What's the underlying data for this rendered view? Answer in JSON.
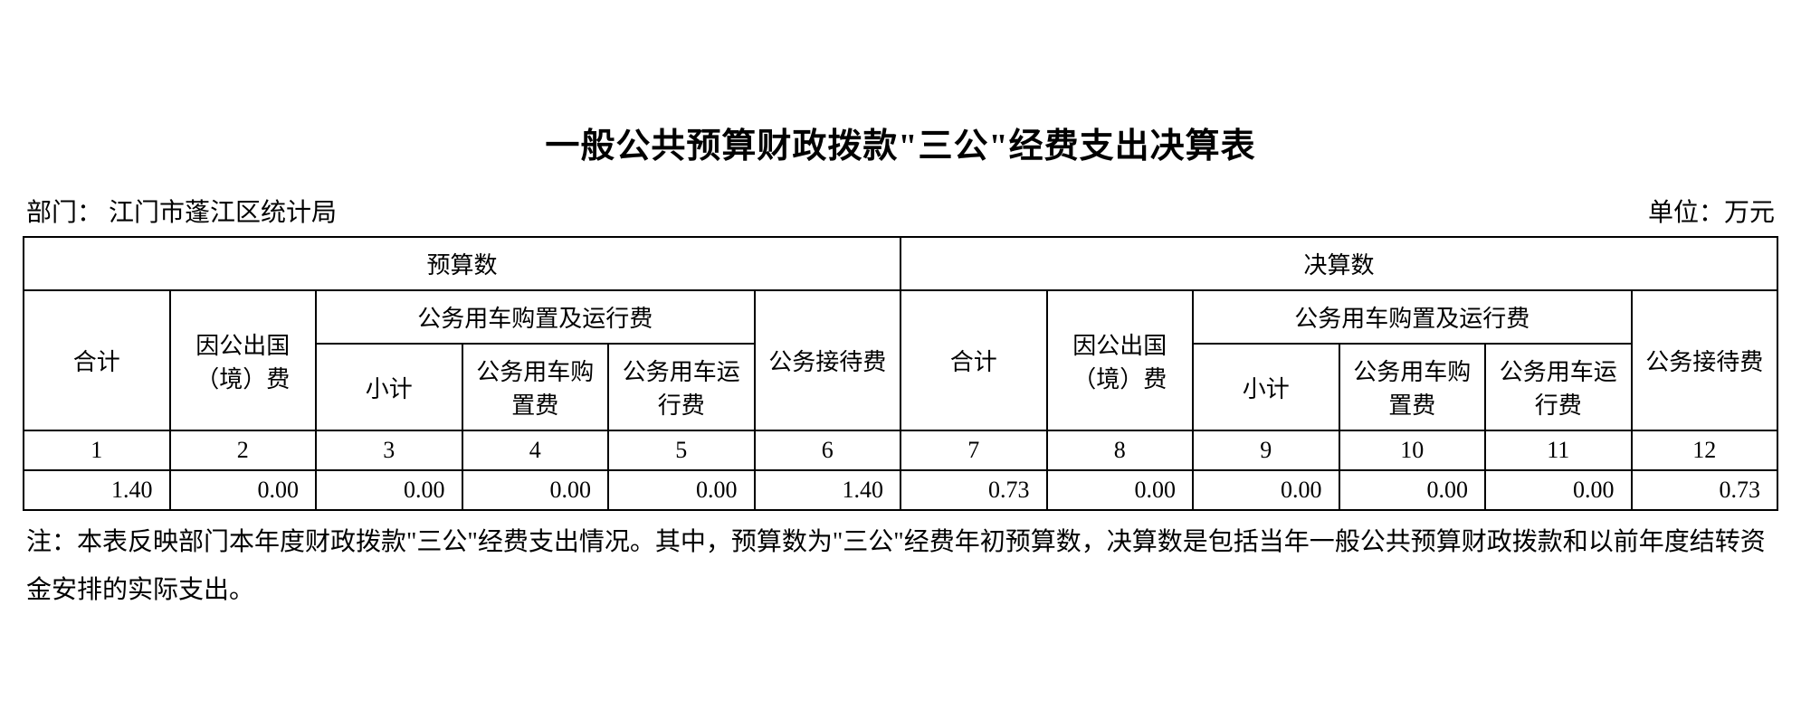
{
  "title": "一般公共预算财政拨款\"三公\"经费支出决算表",
  "dept_label": "部门：",
  "dept_value": "江门市蓬江区统计局",
  "unit_label": "单位：万元",
  "table": {
    "border_color": "#000000",
    "background_color": "#ffffff",
    "text_color": "#000000",
    "header_fontsize": 26,
    "cell_fontsize": 26,
    "top_headers": [
      "预算数",
      "决算数"
    ],
    "mid_headers": {
      "total": "合计",
      "abroad": "因公出国（境）费",
      "vehicle_group": "公务用车购置及运行费",
      "reception": "公务接待费"
    },
    "sub_headers": {
      "subtotal": "小计",
      "vehicle_purchase": "公务用车购置费",
      "vehicle_operation": "公务用车运行费"
    },
    "col_numbers": [
      "1",
      "2",
      "3",
      "4",
      "5",
      "6",
      "7",
      "8",
      "9",
      "10",
      "11",
      "12"
    ],
    "data_row": [
      "1.40",
      "0.00",
      "0.00",
      "0.00",
      "0.00",
      "1.40",
      "0.73",
      "0.00",
      "0.00",
      "0.00",
      "0.00",
      "0.73"
    ]
  },
  "note": "注：本表反映部门本年度财政拨款\"三公\"经费支出情况。其中，预算数为\"三公\"经费年初预算数，决算数是包括当年一般公共预算财政拨款和以前年度结转资金安排的实际支出。"
}
